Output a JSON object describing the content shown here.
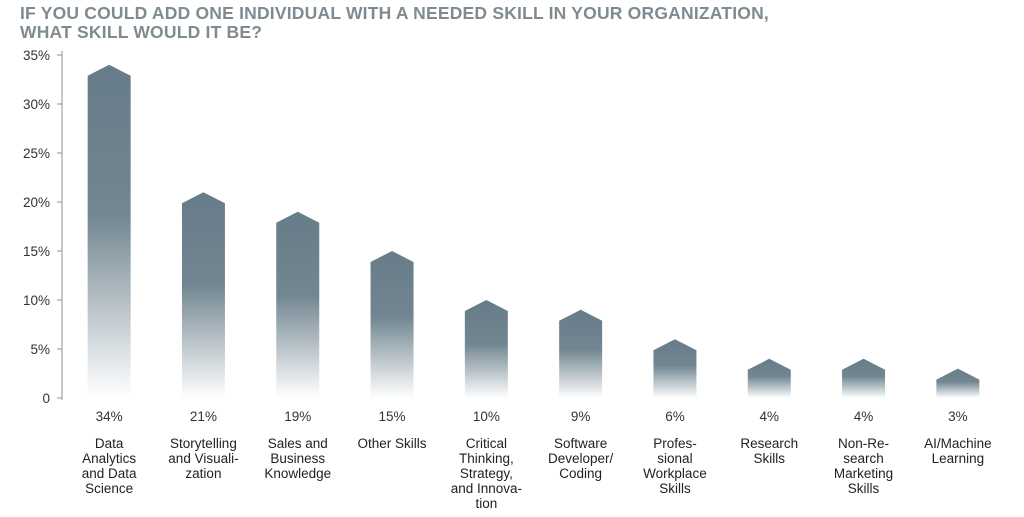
{
  "chart_data": {
    "type": "bar",
    "title_lines": [
      "IF YOU COULD ADD ONE INDIVIDUAL WITH A NEEDED SKILL IN YOUR ORGANIZATION,",
      "WHAT SKILL WOULD IT BE?"
    ],
    "ylim": [
      0,
      35
    ],
    "yticks": [
      0,
      5,
      10,
      15,
      20,
      25,
      30,
      35
    ],
    "ytick_labels": [
      "0",
      "5%",
      "10%",
      "15%",
      "20%",
      "25%",
      "30%",
      "35%"
    ],
    "grid": false,
    "bar_color": "#667c88",
    "categories": [
      [
        "Data",
        "Analytics",
        "and Data",
        "Science"
      ],
      [
        "Storytelling",
        "and Visuali-",
        "zation"
      ],
      [
        "Sales and",
        "Business",
        "Knowledge"
      ],
      [
        "Other  Skills"
      ],
      [
        "Critical",
        "Thinking,",
        "Strategy,",
        "and Innova-",
        "tion"
      ],
      [
        "Software",
        "Developer/",
        "Coding"
      ],
      [
        "Profes-",
        "sional",
        "Workplace",
        "Skills"
      ],
      [
        "Research",
        "Skills"
      ],
      [
        "Non-Re-",
        "search",
        "Marketing",
        "Skills"
      ],
      [
        "AI/Machine",
        "Learning"
      ]
    ],
    "values": [
      34,
      21,
      19,
      15,
      10,
      9,
      6,
      4,
      4,
      3
    ],
    "value_labels": [
      "34%",
      "21%",
      "19%",
      "15%",
      "10%",
      "9%",
      "6%",
      "4%",
      "4%",
      "3%"
    ]
  }
}
